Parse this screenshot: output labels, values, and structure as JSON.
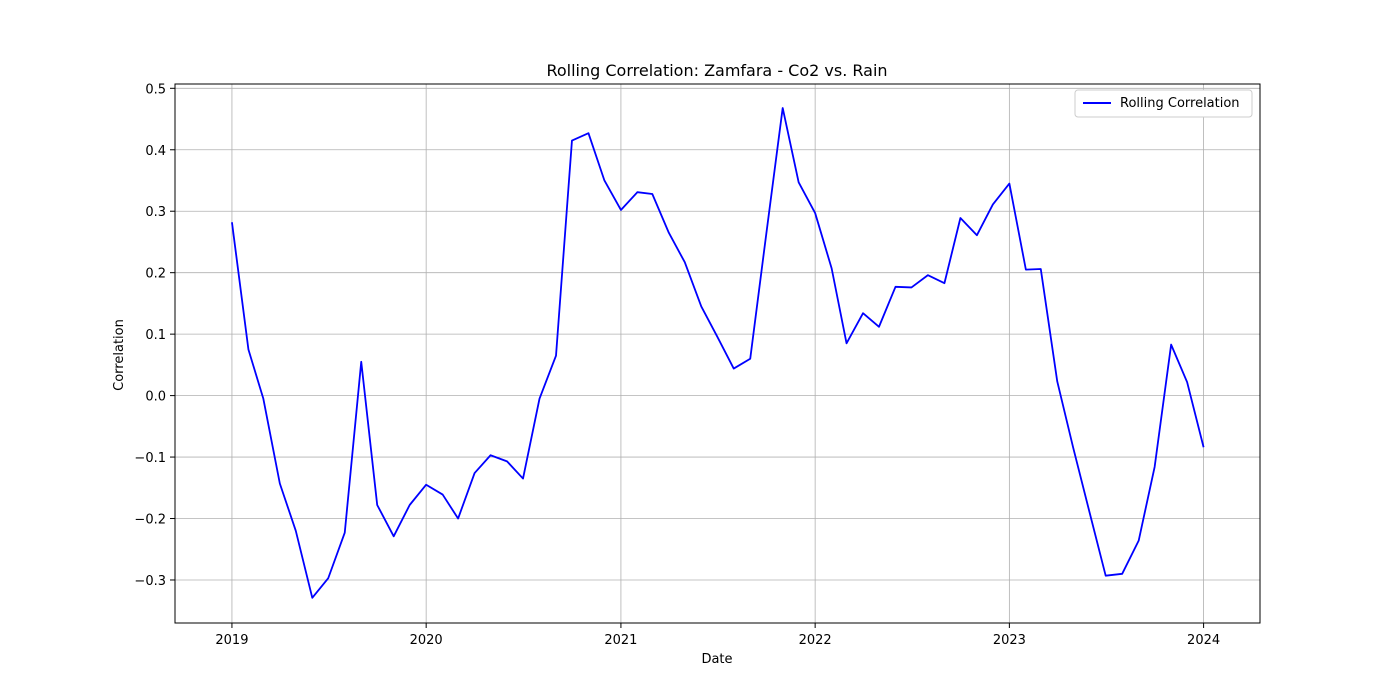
{
  "chart_data": {
    "type": "line",
    "title": "Rolling Correlation: Zamfara - Co2 vs. Rain",
    "xlabel": "Date",
    "ylabel": "Correlation",
    "xlim": [
      "2018-09-16",
      "2024-04-16"
    ],
    "ylim": [
      -0.37,
      0.507
    ],
    "grid": true,
    "legend_position": "top-right",
    "x_ticks": [
      "2019",
      "2020",
      "2021",
      "2022",
      "2023",
      "2024"
    ],
    "y_ticks": [
      "−0.3",
      "−0.2",
      "−0.1",
      "0.0",
      "0.1",
      "0.2",
      "0.3",
      "0.4",
      "0.5"
    ],
    "series": [
      {
        "name": "Rolling Correlation",
        "color": "#0000ff",
        "x": [
          "2019-01-01",
          "2019-02-01",
          "2019-03-01",
          "2019-04-01",
          "2019-05-01",
          "2019-06-01",
          "2019-07-01",
          "2019-08-01",
          "2019-09-01",
          "2019-10-01",
          "2019-11-01",
          "2019-12-01",
          "2020-01-01",
          "2020-02-01",
          "2020-03-01",
          "2020-04-01",
          "2020-05-01",
          "2020-06-01",
          "2020-07-01",
          "2020-08-01",
          "2020-09-01",
          "2020-10-01",
          "2020-11-01",
          "2020-12-01",
          "2021-01-01",
          "2021-02-01",
          "2021-03-01",
          "2021-04-01",
          "2021-05-01",
          "2021-06-01",
          "2021-07-01",
          "2021-08-01",
          "2021-09-01",
          "2021-10-01",
          "2021-11-01",
          "2021-12-01",
          "2022-01-01",
          "2022-02-01",
          "2022-03-01",
          "2022-04-01",
          "2022-05-01",
          "2022-06-01",
          "2022-07-01",
          "2022-08-01",
          "2022-09-01",
          "2022-10-01",
          "2022-11-01",
          "2022-12-01",
          "2023-01-01",
          "2023-02-01",
          "2023-03-01",
          "2023-04-01",
          "2023-05-01",
          "2023-06-01",
          "2023-07-01",
          "2023-08-01",
          "2023-09-01",
          "2023-10-01",
          "2023-11-01",
          "2023-12-01",
          "2024-01-01"
        ],
        "y": [
          0.282,
          0.075,
          -0.005,
          -0.143,
          -0.22,
          -0.329,
          -0.297,
          -0.223,
          0.055,
          -0.178,
          -0.229,
          -0.178,
          -0.145,
          -0.161,
          -0.2,
          -0.126,
          -0.097,
          -0.107,
          -0.135,
          -0.005,
          0.065,
          0.415,
          0.427,
          0.35,
          0.302,
          0.331,
          0.328,
          0.265,
          0.217,
          0.145,
          0.096,
          0.044,
          0.06,
          0.262,
          0.468,
          0.347,
          0.297,
          0.207,
          0.085,
          0.134,
          0.112,
          0.177,
          0.176,
          0.196,
          0.183,
          0.289,
          0.261,
          0.311,
          0.345,
          0.205,
          0.206,
          0.023,
          -0.085,
          -0.191,
          -0.293,
          -0.29,
          -0.236,
          -0.116,
          0.083,
          0.022,
          -0.084
        ]
      }
    ]
  }
}
